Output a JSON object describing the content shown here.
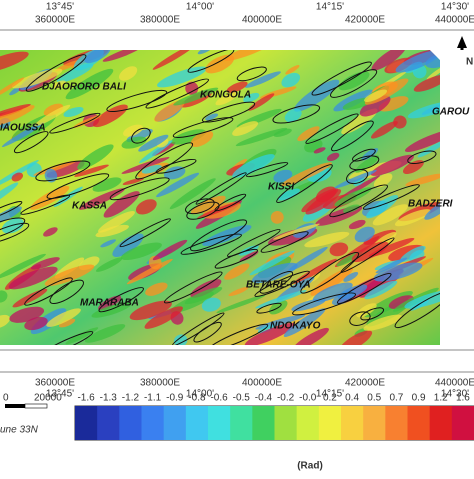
{
  "top_axis": {
    "degrees": [
      "13°45'",
      "14°00'",
      "14°15'",
      "14°30'"
    ],
    "eastings": [
      "360000E",
      "380000E",
      "400000E",
      "420000E",
      "440000E"
    ]
  },
  "bottom_axis": {
    "eastings": [
      "360000E",
      "380000E",
      "400000E",
      "420000E",
      "440000E"
    ],
    "degrees": [
      "13°45'",
      "14°00'",
      "14°15'",
      "14°30'"
    ]
  },
  "north_label": "N",
  "places": [
    "DJAORORO BALI",
    "KONGOLA",
    "GAROU",
    "IAOUSSA",
    "KISSI",
    "KASSA",
    "BADZERI",
    "BETARE-OYA",
    "MARARABA",
    "NDOKAYO"
  ],
  "scale": {
    "start": "0",
    "end": "20000",
    "zone": "une 33N"
  },
  "colorbar": {
    "labels": [
      "-1.6",
      "-1.3",
      "-1.2",
      "-1.1",
      "-0.9",
      "-0.8",
      "-0.6",
      "-0.5",
      "-0.4",
      "-0.2",
      "-0.0",
      "0.2",
      "0.4",
      "0.5",
      "0.7",
      "0.9",
      "1.2",
      "1.6"
    ],
    "unit": "(Rad)"
  }
}
